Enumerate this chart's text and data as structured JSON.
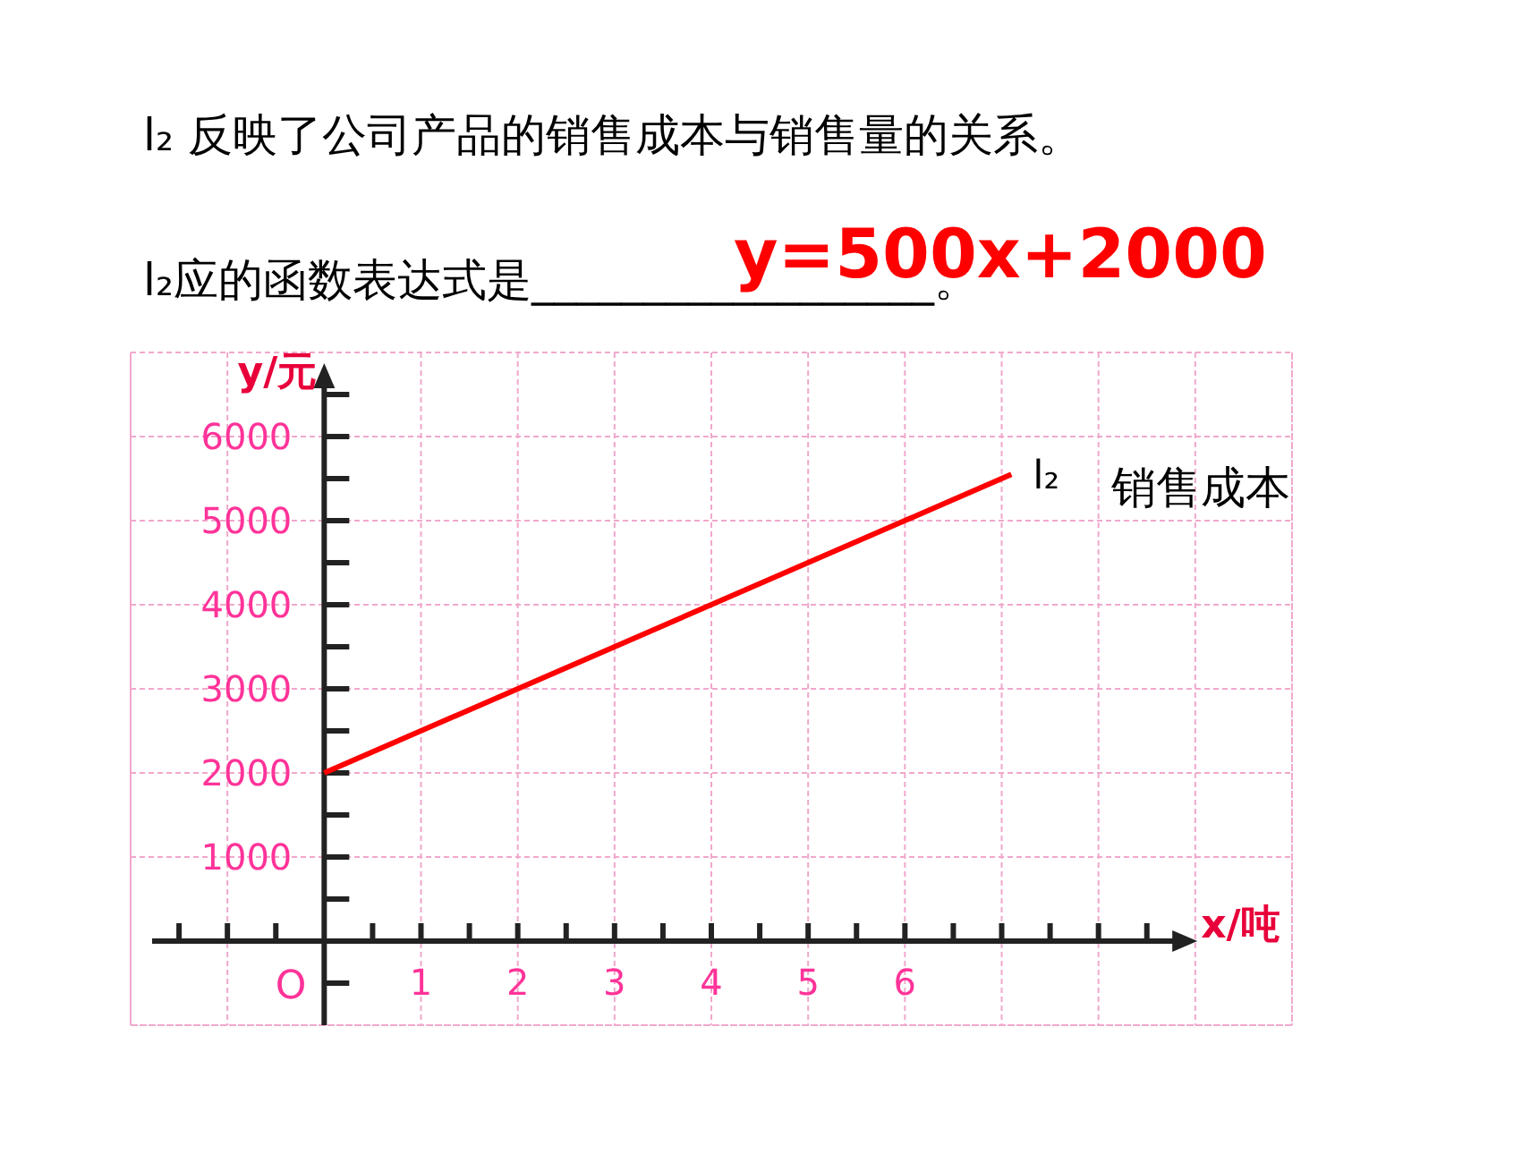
{
  "chart_data": {
    "type": "line",
    "title": "l₂ 反映了公司产品的销售成本与销售量的关系。",
    "subtitle": "l₂应的函数表达式是__________________。",
    "xlabel": "x/吨",
    "ylabel": "y/元",
    "x": [
      0,
      7.1
    ],
    "series": [
      {
        "name": "l₂",
        "color": "#ff0000",
        "values": [
          2000,
          5550
        ]
      }
    ],
    "xlim": [
      -2,
      10
    ],
    "ylim": [
      -1000,
      7000
    ],
    "xticks": [
      {
        "value": -2,
        "label": null
      },
      {
        "value": -1.5,
        "label": null
      },
      {
        "value": -1,
        "label": null
      },
      {
        "value": -0.5,
        "label": null
      },
      {
        "value": 0.5,
        "label": null
      },
      1,
      {
        "value": 1.5,
        "label": null
      },
      2,
      {
        "value": 2.5,
        "label": null
      },
      3,
      {
        "value": 3.5,
        "label": null
      },
      4,
      {
        "value": 4.5,
        "label": null
      },
      5,
      {
        "value": 5.5,
        "label": null
      },
      6,
      {
        "value": 6.5,
        "label": null
      },
      {
        "value": 7,
        "label": null
      },
      {
        "value": 7.5,
        "label": null
      },
      {
        "value": 8,
        "label": null
      },
      {
        "value": 8.5,
        "label": null
      },
      {
        "value": 9,
        "label": null
      },
      {
        "value": 10,
        "label": null
      }
    ],
    "yticks": [
      {
        "value": -1000,
        "label": null
      },
      {
        "value": -500,
        "label": null
      },
      {
        "value": 500,
        "label": null
      },
      1000,
      {
        "value": 1500,
        "label": null
      },
      2000,
      {
        "value": 2500,
        "label": null
      },
      3000,
      {
        "value": 3500,
        "label": null
      },
      4000,
      {
        "value": 4500,
        "label": null
      },
      5000,
      {
        "value": 5500,
        "label": null
      },
      6000,
      {
        "value": 6500,
        "label": null
      },
      {
        "value": 7000,
        "label": null
      }
    ],
    "grid": true,
    "marker": "none",
    "line_style": "solid",
    "annotations": [
      "y=500x+2000",
      "O",
      {
        "text": "销售成本",
        "x": 7.1,
        "y": 5550
      }
    ]
  }
}
